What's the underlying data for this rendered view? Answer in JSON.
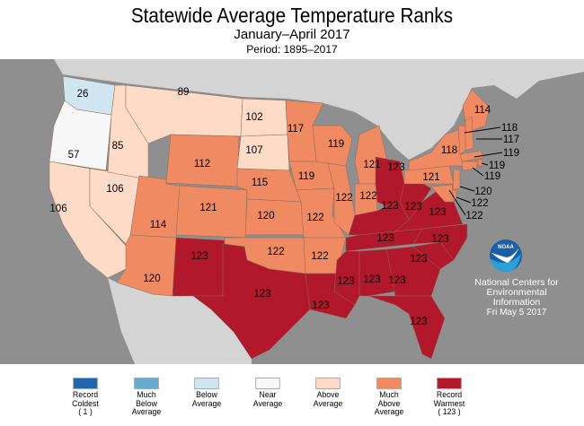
{
  "header": {
    "title": "Statewide Average Temperature Ranks",
    "subtitle": "January–April 2017",
    "period": "Period: 1895–2017"
  },
  "colors": {
    "record_coldest": "#2166ac",
    "much_below": "#67a9cf",
    "below": "#d1e5f0",
    "near": "#f7f7f7",
    "above": "#fddbc7",
    "much_above": "#ef8a62",
    "record_warmest": "#b2182b",
    "ocean": "#8f8f8f",
    "foreign_land": "#d4d4d4"
  },
  "states": [
    {
      "id": "WA",
      "rank": "26",
      "category": "below"
    },
    {
      "id": "OR",
      "rank": "57",
      "category": "near"
    },
    {
      "id": "CA",
      "rank": "106",
      "category": "above"
    },
    {
      "id": "NV",
      "rank": "106",
      "category": "above"
    },
    {
      "id": "ID",
      "rank": "85",
      "category": "above"
    },
    {
      "id": "MT",
      "rank": "89",
      "category": "above"
    },
    {
      "id": "WY",
      "rank": "112",
      "category": "much_above"
    },
    {
      "id": "UT",
      "rank": "114",
      "category": "much_above"
    },
    {
      "id": "CO",
      "rank": "121",
      "category": "much_above"
    },
    {
      "id": "AZ",
      "rank": "120",
      "category": "much_above"
    },
    {
      "id": "NM",
      "rank": "123",
      "category": "record_warmest"
    },
    {
      "id": "ND",
      "rank": "102",
      "category": "above"
    },
    {
      "id": "SD",
      "rank": "107",
      "category": "above"
    },
    {
      "id": "NE",
      "rank": "115",
      "category": "much_above"
    },
    {
      "id": "KS",
      "rank": "120",
      "category": "much_above"
    },
    {
      "id": "OK",
      "rank": "122",
      "category": "much_above"
    },
    {
      "id": "TX",
      "rank": "123",
      "category": "record_warmest"
    },
    {
      "id": "MN",
      "rank": "117",
      "category": "much_above"
    },
    {
      "id": "IA",
      "rank": "119",
      "category": "much_above"
    },
    {
      "id": "MO",
      "rank": "122",
      "category": "much_above"
    },
    {
      "id": "AR",
      "rank": "122",
      "category": "much_above"
    },
    {
      "id": "LA",
      "rank": "123",
      "category": "record_warmest"
    },
    {
      "id": "WI",
      "rank": "119",
      "category": "much_above"
    },
    {
      "id": "IL",
      "rank": "122",
      "category": "much_above"
    },
    {
      "id": "MI",
      "rank": "121",
      "category": "much_above"
    },
    {
      "id": "IN",
      "rank": "122",
      "category": "much_above"
    },
    {
      "id": "OH",
      "rank": "123",
      "category": "record_warmest"
    },
    {
      "id": "KY",
      "rank": "123",
      "category": "record_warmest"
    },
    {
      "id": "TN",
      "rank": "123",
      "category": "record_warmest"
    },
    {
      "id": "MS",
      "rank": "123",
      "category": "record_warmest"
    },
    {
      "id": "AL",
      "rank": "123",
      "category": "record_warmest"
    },
    {
      "id": "GA",
      "rank": "123",
      "category": "record_warmest"
    },
    {
      "id": "FL",
      "rank": "123",
      "category": "record_warmest"
    },
    {
      "id": "SC",
      "rank": "123",
      "category": "record_warmest"
    },
    {
      "id": "NC",
      "rank": "123",
      "category": "record_warmest"
    },
    {
      "id": "VA",
      "rank": "123",
      "category": "record_warmest"
    },
    {
      "id": "WV",
      "rank": "123",
      "category": "record_warmest"
    },
    {
      "id": "PA",
      "rank": "121",
      "category": "much_above"
    },
    {
      "id": "NY",
      "rank": "118",
      "category": "much_above"
    },
    {
      "id": "ME",
      "rank": "114",
      "category": "much_above"
    },
    {
      "id": "VT",
      "rank": "118",
      "category": "much_above"
    },
    {
      "id": "NH",
      "rank": "117",
      "category": "much_above"
    },
    {
      "id": "MA",
      "rank": "119",
      "category": "much_above"
    },
    {
      "id": "RI",
      "rank": "119",
      "category": "much_above"
    },
    {
      "id": "CT",
      "rank": "119",
      "category": "much_above"
    },
    {
      "id": "NJ",
      "rank": "120",
      "category": "much_above"
    },
    {
      "id": "DE",
      "rank": "122",
      "category": "much_above"
    },
    {
      "id": "MD",
      "rank": "122",
      "category": "much_above"
    }
  ],
  "logo": {
    "text": "NOAA",
    "icon": "noaa-logo"
  },
  "credit": {
    "line1": "National Centers for",
    "line2": "Environmental",
    "line3": "Information",
    "date": "Fri May  5 2017"
  },
  "legend": [
    {
      "lines": [
        "Record",
        "Coldest",
        "( 1 )"
      ],
      "key": "record_coldest"
    },
    {
      "lines": [
        "Much",
        "Below",
        "Average"
      ],
      "key": "much_below"
    },
    {
      "lines": [
        "Below",
        "Average"
      ],
      "key": "below"
    },
    {
      "lines": [
        "Near",
        "Average"
      ],
      "key": "near"
    },
    {
      "lines": [
        "Above",
        "Average"
      ],
      "key": "above"
    },
    {
      "lines": [
        "Much",
        "Above",
        "Average"
      ],
      "key": "much_above"
    },
    {
      "lines": [
        "Record",
        "Warmest",
        "( 123 )"
      ],
      "key": "record_warmest"
    }
  ]
}
